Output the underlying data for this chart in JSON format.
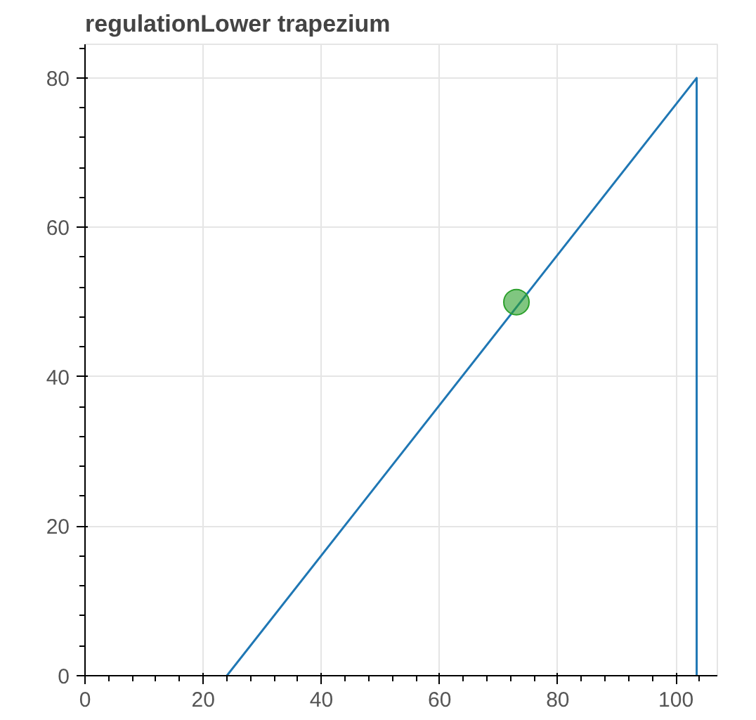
{
  "chart_data": {
    "type": "line",
    "title": "regulationLower trapezium",
    "series": [
      {
        "color": "#1f77b4",
        "x": [
          24,
          103.5,
          103.5
        ],
        "values": [
          0,
          80,
          0
        ]
      },
      {
        "type": "scatter",
        "color": "#2ca02c",
        "x": [
          73
        ],
        "values": [
          50
        ],
        "marker": "circle"
      }
    ],
    "xlim": [
      0,
      107
    ],
    "ylim": [
      0,
      84.5
    ],
    "xticks": [
      0,
      20,
      40,
      60,
      80,
      100
    ],
    "yticks": [
      0,
      20,
      40,
      60,
      80
    ],
    "grid": true
  }
}
